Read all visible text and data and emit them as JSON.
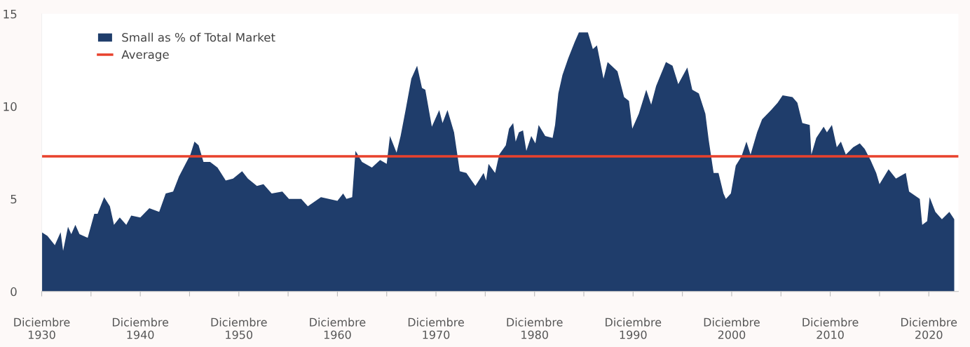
{
  "chart_data": {
    "type": "area",
    "x": [
      "1930-12",
      "1931-07",
      "1932-04",
      "1932-11",
      "1933-02",
      "1933-08",
      "1933-12",
      "1934-05",
      "1934-10",
      "1935-08",
      "1936-04",
      "1936-08",
      "1937-04",
      "1937-11",
      "1938-04",
      "1938-11",
      "1939-07",
      "1940-01",
      "1940-12",
      "1941-11",
      "1942-11",
      "1943-07",
      "1944-04",
      "1944-11",
      "1945-06",
      "1946-01",
      "1946-06",
      "1946-11",
      "1947-05",
      "1948-01",
      "1948-10",
      "1949-08",
      "1950-05",
      "1951-04",
      "1951-11",
      "1952-10",
      "1953-06",
      "1954-04",
      "1955-05",
      "1956-01",
      "1957-04",
      "1957-12",
      "1959-04",
      "1960-12",
      "1961-07",
      "1961-11",
      "1962-06",
      "1962-10",
      "1963-06",
      "1964-06",
      "1965-04",
      "1965-12",
      "1966-04",
      "1966-12",
      "1967-05",
      "1967-11",
      "1968-06",
      "1969-01",
      "1969-07",
      "1969-11",
      "1970-07",
      "1971-04",
      "1971-08",
      "1972-02",
      "1972-10",
      "1973-05",
      "1974-01",
      "1974-12",
      "1975-10",
      "1976-01",
      "1976-04",
      "1976-12",
      "1977-05",
      "1978-01",
      "1978-05",
      "1978-10",
      "1979-01",
      "1979-05",
      "1979-10",
      "1980-02",
      "1980-08",
      "1981-01",
      "1981-05",
      "1982-01",
      "1982-10",
      "1983-01",
      "1983-05",
      "1983-10",
      "1984-05",
      "1985-01",
      "1985-06",
      "1986-05",
      "1986-11",
      "1987-04",
      "1987-12",
      "1988-05",
      "1989-05",
      "1990-01",
      "1990-07",
      "1990-11",
      "1991-07",
      "1992-04",
      "1992-10",
      "1993-04",
      "1994-04",
      "1994-12",
      "1995-07",
      "1996-06",
      "1996-12",
      "1997-08",
      "1998-04",
      "1998-08",
      "1999-02",
      "1999-08",
      "2000-02",
      "2000-05",
      "2000-11",
      "2001-05",
      "2001-12",
      "2002-06",
      "2002-11",
      "2003-07",
      "2004-01",
      "2004-12",
      "2005-08",
      "2006-02",
      "2007-02",
      "2007-08",
      "2008-02",
      "2008-11",
      "2009-01",
      "2009-07",
      "2010-04",
      "2010-08",
      "2011-02",
      "2011-08",
      "2012-01",
      "2012-07",
      "2013-04",
      "2013-12",
      "2014-06",
      "2015-01",
      "2015-08",
      "2015-12",
      "2016-11",
      "2017-08",
      "2018-08",
      "2018-12",
      "2020-01",
      "2020-04",
      "2020-10",
      "2021-01",
      "2021-08",
      "2022-04",
      "2023-01",
      "2023-07"
    ],
    "series": [
      {
        "name": "Small as % of Total Market",
        "color": "#1f3d6b",
        "values": [
          3.2,
          3.0,
          2.5,
          3.2,
          2.2,
          3.5,
          3.1,
          3.6,
          3.1,
          2.9,
          4.2,
          4.2,
          5.1,
          4.6,
          3.6,
          4.0,
          3.6,
          4.1,
          4.0,
          4.5,
          4.3,
          5.3,
          5.4,
          6.2,
          6.8,
          7.4,
          8.1,
          7.9,
          7.0,
          7.0,
          6.7,
          6.0,
          6.1,
          6.5,
          6.1,
          5.7,
          5.8,
          5.3,
          5.4,
          5.0,
          5.0,
          4.6,
          5.1,
          4.9,
          5.3,
          5.0,
          5.1,
          7.6,
          7.0,
          6.7,
          7.1,
          6.9,
          8.4,
          7.5,
          8.4,
          9.8,
          11.5,
          12.2,
          11.0,
          10.9,
          8.9,
          9.8,
          9.1,
          9.8,
          8.6,
          6.5,
          6.4,
          5.7,
          6.4,
          6.0,
          6.9,
          6.4,
          7.4,
          7.9,
          8.8,
          9.1,
          8.1,
          8.6,
          8.7,
          7.6,
          8.4,
          8.0,
          9.0,
          8.4,
          8.3,
          9.0,
          10.7,
          11.7,
          12.6,
          13.5,
          14.0,
          14.0,
          13.1,
          13.3,
          11.5,
          12.4,
          11.9,
          10.5,
          10.3,
          8.8,
          9.6,
          10.9,
          10.1,
          11.1,
          12.4,
          12.2,
          11.2,
          12.1,
          10.9,
          10.7,
          9.6,
          8.2,
          6.4,
          6.4,
          5.3,
          5.0,
          5.3,
          6.8,
          7.3,
          8.1,
          7.4,
          8.6,
          9.3,
          9.8,
          10.2,
          10.6,
          10.5,
          10.2,
          9.1,
          9.0,
          7.4,
          8.3,
          8.9,
          8.6,
          9.0,
          7.8,
          8.1,
          7.4,
          7.8,
          8.0,
          7.7,
          7.1,
          6.4,
          5.8,
          6.6,
          6.1,
          6.4,
          5.4,
          5.0,
          3.6,
          3.8,
          5.1,
          4.3,
          3.9,
          4.3,
          3.9
        ]
      }
    ],
    "ref_lines": [
      {
        "axis": "y",
        "value": 7.3,
        "label": "Average",
        "color": "#e8412c"
      }
    ],
    "xlim": [
      "1930-12",
      "2023-12"
    ],
    "xticks": [
      {
        "value": "1930-12",
        "label": "Diciembre\n1930"
      },
      {
        "value": "1935-12",
        "label": null
      },
      {
        "value": "1940-12",
        "label": "Diciembre\n1940"
      },
      {
        "value": "1945-12",
        "label": null
      },
      {
        "value": "1950-12",
        "label": "Diciembre\n1950"
      },
      {
        "value": "1955-12",
        "label": null
      },
      {
        "value": "1960-12",
        "label": "Diciembre\n1960"
      },
      {
        "value": "1965-12",
        "label": null
      },
      {
        "value": "1970-12",
        "label": "Diciembre\n1970"
      },
      {
        "value": "1975-12",
        "label": null
      },
      {
        "value": "1980-12",
        "label": "Diciembre\n1980"
      },
      {
        "value": "1985-12",
        "label": null
      },
      {
        "value": "1990-12",
        "label": "Diciembre\n1990"
      },
      {
        "value": "1995-12",
        "label": null
      },
      {
        "value": "2000-12",
        "label": "Diciembre\n2000"
      },
      {
        "value": "2005-12",
        "label": null
      },
      {
        "value": "2010-12",
        "label": "Diciembre\n2010"
      },
      {
        "value": "2015-12",
        "label": null
      },
      {
        "value": "2020-12",
        "label": "Diciembre\n2020"
      }
    ],
    "ylim": [
      0,
      15
    ],
    "yticks": [
      0,
      5,
      10,
      15
    ],
    "grid": false,
    "legend": "top left"
  }
}
